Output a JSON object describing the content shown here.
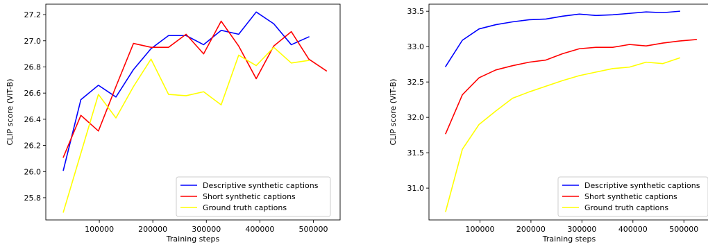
{
  "chart_data": [
    {
      "type": "line",
      "xlabel": "Training steps",
      "ylabel": "CLIP score (ViT-B)",
      "xlim": [
        0,
        550000
      ],
      "ylim": [
        25.63,
        27.28
      ],
      "x_ticks": [
        100000,
        200000,
        300000,
        400000,
        500000
      ],
      "y_ticks": [
        25.8,
        26.0,
        26.2,
        26.4,
        26.6,
        26.8,
        27.0,
        27.2
      ],
      "grid": false,
      "legend_position": "lower-right",
      "series": [
        {
          "name": "Descriptive synthetic captions",
          "color": "#0000ff",
          "x": [
            32768,
            65536,
            98304,
            131072,
            163840,
            196608,
            229376,
            262144,
            294912,
            327680,
            360448,
            393216,
            425984,
            458752,
            491520
          ],
          "y": [
            26.01,
            26.55,
            26.66,
            26.57,
            26.78,
            26.94,
            27.04,
            27.04,
            26.97,
            27.08,
            27.05,
            27.22,
            27.13,
            26.97,
            27.03
          ]
        },
        {
          "name": "Short synthetic captions",
          "color": "#ff0000",
          "x": [
            32768,
            65536,
            98304,
            131072,
            163840,
            196608,
            229376,
            262144,
            294912,
            327680,
            360448,
            393216,
            425984,
            458752,
            491520,
            524288
          ],
          "y": [
            26.11,
            26.43,
            26.31,
            26.65,
            26.98,
            26.95,
            26.95,
            27.05,
            26.9,
            27.15,
            26.96,
            26.71,
            26.96,
            27.07,
            26.86,
            26.77
          ]
        },
        {
          "name": "Ground truth captions",
          "color": "#ffff00",
          "x": [
            32768,
            65536,
            98304,
            131072,
            163840,
            196608,
            229376,
            262144,
            294912,
            327680,
            360448,
            393216,
            425984,
            458752,
            491520
          ],
          "y": [
            25.69,
            26.14,
            26.59,
            26.41,
            26.65,
            26.86,
            26.59,
            26.58,
            26.61,
            26.51,
            26.89,
            26.81,
            26.95,
            26.83,
            26.85
          ]
        }
      ]
    },
    {
      "type": "line",
      "xlabel": "Training steps",
      "ylabel": "CLIP score (ViT-B)",
      "xlim": [
        0,
        550000
      ],
      "ylim": [
        30.55,
        33.6
      ],
      "x_ticks": [
        100000,
        200000,
        300000,
        400000,
        500000
      ],
      "y_ticks": [
        31.0,
        31.5,
        32.0,
        32.5,
        33.0,
        33.5
      ],
      "grid": false,
      "legend_position": "lower-right",
      "series": [
        {
          "name": "Descriptive synthetic captions",
          "color": "#0000ff",
          "x": [
            32768,
            65536,
            98304,
            131072,
            163840,
            196608,
            229376,
            262144,
            294912,
            327680,
            360448,
            393216,
            425984,
            458752,
            491520
          ],
          "y": [
            32.72,
            33.09,
            33.25,
            33.31,
            33.35,
            33.38,
            33.39,
            33.43,
            33.46,
            33.44,
            33.45,
            33.47,
            33.49,
            33.48,
            33.5
          ]
        },
        {
          "name": "Short synthetic captions",
          "color": "#ff0000",
          "x": [
            32768,
            65536,
            98304,
            131072,
            163840,
            196608,
            229376,
            262144,
            294912,
            327680,
            360448,
            393216,
            425984,
            458752,
            491520,
            524288
          ],
          "y": [
            31.77,
            32.32,
            32.56,
            32.67,
            32.73,
            32.78,
            32.81,
            32.9,
            32.97,
            32.99,
            32.99,
            33.03,
            33.01,
            33.05,
            33.08,
            33.1
          ]
        },
        {
          "name": "Ground truth captions",
          "color": "#ffff00",
          "x": [
            32768,
            65536,
            98304,
            131072,
            163840,
            196608,
            229376,
            262144,
            294912,
            327680,
            360448,
            393216,
            425984,
            458752,
            491520
          ],
          "y": [
            30.67,
            31.55,
            31.9,
            32.09,
            32.27,
            32.36,
            32.44,
            32.52,
            32.59,
            32.64,
            32.69,
            32.71,
            32.78,
            32.76,
            32.84
          ]
        }
      ]
    }
  ]
}
